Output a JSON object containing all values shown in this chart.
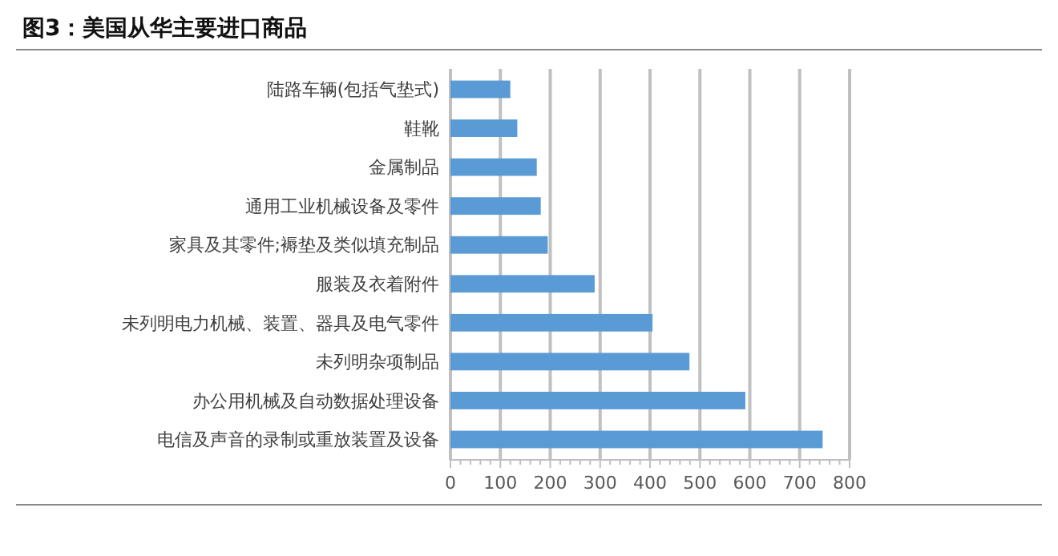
{
  "chart_data": {
    "type": "bar",
    "orientation": "horizontal",
    "title": "图3：美国从华主要进口商品",
    "categories": [
      "陆路车辆(包括气垫式)",
      "鞋靴",
      "金属制品",
      "通用工业机械设备及零件",
      "家具及其零件;褥垫及类似填充制品",
      "服装及衣着附件",
      "未列明电力机械、装置、器具及电气零件",
      "未列明杂项制品",
      "办公用机械及自动数据处理设备",
      "电信及声音的录制或重放装置及设备"
    ],
    "values": [
      120,
      134,
      173,
      181,
      195,
      289,
      405,
      479,
      591,
      746
    ],
    "color": "#5b9bd5",
    "xlim": [
      0,
      800
    ],
    "xticks": [
      0,
      100,
      200,
      300,
      400,
      500,
      600,
      700,
      800
    ],
    "grid": "x"
  }
}
